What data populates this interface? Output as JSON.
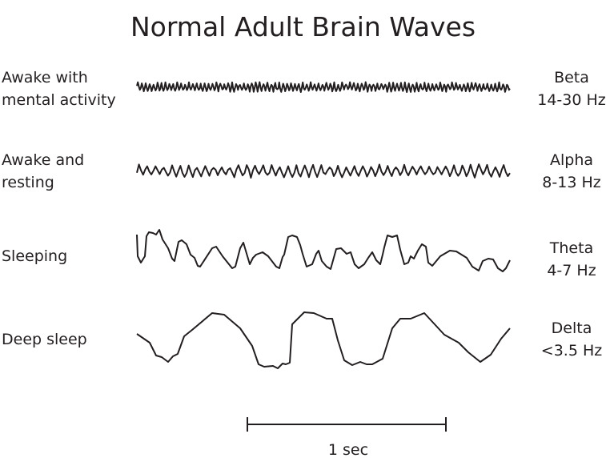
{
  "title": "Normal Adult Brain Waves",
  "rows": [
    {
      "state_lines": [
        "Awake with",
        "mental activity"
      ],
      "wave": "Beta",
      "freq": "14-30 Hz"
    },
    {
      "state_lines": [
        "Awake and",
        "resting"
      ],
      "wave": "Alpha",
      "freq": "8-13 Hz"
    },
    {
      "state_lines": [
        "Sleeping"
      ],
      "wave": "Theta",
      "freq": "4-7 Hz"
    },
    {
      "state_lines": [
        "Deep sleep"
      ],
      "wave": "Delta",
      "freq": "<3.5 Hz"
    }
  ],
  "scale_bar": {
    "label": "1 sec"
  },
  "colors": {
    "line": "#231f20"
  }
}
